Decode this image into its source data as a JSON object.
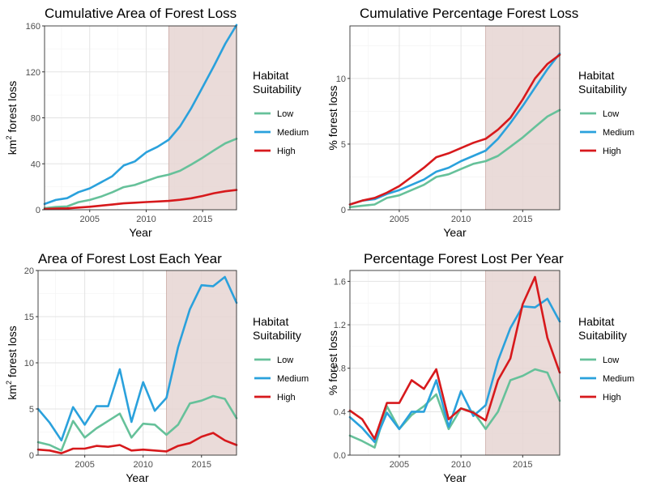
{
  "colors": {
    "low": "#66c19a",
    "medium": "#2aa1dc",
    "high": "#d7191c",
    "shade": "#e6d5d2",
    "grid_major": "#e3e3e3",
    "grid_minor": "#f2f2f2",
    "axis_text": "#4d4d4d"
  },
  "chart_data": [
    {
      "type": "line",
      "title": "Cumulative Area of Forest Loss",
      "xlabel": "Year",
      "ylabel_main": "km",
      "ylabel_sup": "2",
      "ylabel_rest": " forest loss",
      "xlim": [
        2001,
        2018
      ],
      "ylim": [
        0,
        160
      ],
      "xticks": [
        2005,
        2010,
        2015
      ],
      "yticks": [
        0,
        40,
        80,
        120,
        160
      ],
      "ytick_labels": [
        "0",
        "40",
        "80",
        "120",
        "160"
      ],
      "shaded_range": [
        2012,
        2018
      ],
      "legend": {
        "title_line1": "Habitat",
        "title_line2": "Suitability",
        "entries": [
          "Low",
          "Medium",
          "High"
        ],
        "position": "right"
      },
      "x": [
        2001,
        2002,
        2003,
        2004,
        2005,
        2006,
        2007,
        2008,
        2009,
        2010,
        2011,
        2012,
        2013,
        2014,
        2015,
        2016,
        2017,
        2018
      ],
      "series": [
        {
          "name": "Low",
          "color_key": "low",
          "values": [
            1.4,
            2.4,
            2.9,
            6.6,
            8.5,
            11.4,
            15.2,
            19.7,
            21.6,
            25.0,
            28.4,
            30.6,
            33.9,
            39.4,
            45.3,
            51.7,
            57.8,
            61.8
          ]
        },
        {
          "name": "Medium",
          "color_key": "medium",
          "values": [
            5,
            8.5,
            10.1,
            15.3,
            18.6,
            23.8,
            29.2,
            38.5,
            42.1,
            50.0,
            54.8,
            61.0,
            72.6,
            88.5,
            106.8,
            125.1,
            144.5,
            160.8
          ]
        },
        {
          "name": "High",
          "color_key": "high",
          "values": [
            0.6,
            1.0,
            1.2,
            1.9,
            2.6,
            3.6,
            4.5,
            5.6,
            6.1,
            6.7,
            7.2,
            7.7,
            8.7,
            10.0,
            12.0,
            14.4,
            16.1,
            17.2
          ]
        }
      ]
    },
    {
      "type": "line",
      "title": "Cumulative Percentage Forest Loss",
      "xlabel": "Year",
      "ylabel_main": "% forest loss",
      "ylabel_sup": "",
      "ylabel_rest": "",
      "xlim": [
        2001,
        2018
      ],
      "ylim": [
        0,
        14
      ],
      "xticks": [
        2005,
        2010,
        2015
      ],
      "yticks": [
        0,
        5,
        10
      ],
      "ytick_labels": [
        "0",
        "5",
        "10"
      ],
      "shaded_range": [
        2012,
        2018
      ],
      "legend": {
        "title_line1": "Habitat",
        "title_line2": "Suitability",
        "entries": [
          "Low",
          "Medium",
          "High"
        ],
        "position": "right"
      },
      "x": [
        2001,
        2002,
        2003,
        2004,
        2005,
        2006,
        2007,
        2008,
        2009,
        2010,
        2011,
        2012,
        2013,
        2014,
        2015,
        2016,
        2017,
        2018
      ],
      "series": [
        {
          "name": "Low",
          "color_key": "low",
          "values": [
            0.2,
            0.3,
            0.4,
            0.9,
            1.1,
            1.5,
            1.9,
            2.5,
            2.7,
            3.1,
            3.5,
            3.7,
            4.1,
            4.8,
            5.5,
            6.3,
            7.1,
            7.6
          ]
        },
        {
          "name": "Medium",
          "color_key": "medium",
          "values": [
            0.4,
            0.7,
            0.8,
            1.2,
            1.5,
            1.9,
            2.3,
            2.9,
            3.2,
            3.7,
            4.1,
            4.5,
            5.4,
            6.6,
            7.9,
            9.3,
            10.7,
            11.9
          ]
        },
        {
          "name": "High",
          "color_key": "high",
          "values": [
            0.4,
            0.7,
            0.9,
            1.3,
            1.8,
            2.5,
            3.2,
            4.0,
            4.3,
            4.7,
            5.1,
            5.4,
            6.1,
            7.0,
            8.4,
            10.0,
            11.1,
            11.8
          ]
        }
      ]
    },
    {
      "type": "line",
      "title": "Area of Forest Lost Each Year",
      "xlabel": "Year",
      "ylabel_main": "km",
      "ylabel_sup": "2",
      "ylabel_rest": " forest loss",
      "xlim": [
        2001,
        2018
      ],
      "ylim": [
        0,
        20
      ],
      "xticks": [
        2005,
        2010,
        2015
      ],
      "yticks": [
        0,
        5,
        10,
        15,
        20
      ],
      "ytick_labels": [
        "0",
        "5",
        "10",
        "15",
        "20"
      ],
      "shaded_range": [
        2012,
        2018
      ],
      "legend": {
        "title_line1": "Habitat",
        "title_line2": "Suitability",
        "entries": [
          "Low",
          "Medium",
          "High"
        ],
        "position": "right"
      },
      "x": [
        2001,
        2002,
        2003,
        2004,
        2005,
        2006,
        2007,
        2008,
        2009,
        2010,
        2011,
        2012,
        2013,
        2014,
        2015,
        2016,
        2017,
        2018
      ],
      "series": [
        {
          "name": "Low",
          "color_key": "low",
          "values": [
            1.4,
            1.1,
            0.5,
            3.7,
            1.9,
            2.9,
            3.7,
            4.5,
            1.9,
            3.4,
            3.3,
            2.2,
            3.3,
            5.6,
            5.9,
            6.4,
            6.1,
            4.0
          ]
        },
        {
          "name": "Medium",
          "color_key": "medium",
          "values": [
            5.0,
            3.5,
            1.6,
            5.2,
            3.3,
            5.3,
            5.3,
            9.3,
            3.6,
            7.9,
            4.8,
            6.2,
            11.7,
            15.8,
            18.4,
            18.3,
            19.3,
            16.5
          ]
        },
        {
          "name": "High",
          "color_key": "high",
          "values": [
            0.6,
            0.5,
            0.2,
            0.7,
            0.7,
            1.0,
            0.9,
            1.1,
            0.5,
            0.6,
            0.5,
            0.4,
            1.0,
            1.3,
            2.0,
            2.4,
            1.6,
            1.1
          ]
        }
      ]
    },
    {
      "type": "line",
      "title": "Percentage Forest Lost Per Year",
      "xlabel": "Year",
      "ylabel_main": "% forest loss",
      "ylabel_sup": "",
      "ylabel_rest": "",
      "xlim": [
        2001,
        2018
      ],
      "ylim": [
        0,
        1.7
      ],
      "xticks": [
        2005,
        2010,
        2015
      ],
      "yticks": [
        0,
        0.4,
        0.8,
        1.2,
        1.6
      ],
      "ytick_labels": [
        "0.0",
        "0.4",
        "0.8",
        "1.2",
        "1.6"
      ],
      "shaded_range": [
        2012,
        2018
      ],
      "legend": {
        "title_line1": "Habitat",
        "title_line2": "Suitability",
        "entries": [
          "Low",
          "Medium",
          "High"
        ],
        "position": "right"
      },
      "x": [
        2001,
        2002,
        2003,
        2004,
        2005,
        2006,
        2007,
        2008,
        2009,
        2010,
        2011,
        2012,
        2013,
        2014,
        2015,
        2016,
        2017,
        2018
      ],
      "series": [
        {
          "name": "Low",
          "color_key": "low",
          "values": [
            0.18,
            0.13,
            0.07,
            0.45,
            0.24,
            0.37,
            0.45,
            0.56,
            0.24,
            0.43,
            0.4,
            0.24,
            0.4,
            0.69,
            0.73,
            0.79,
            0.76,
            0.5
          ]
        },
        {
          "name": "Medium",
          "color_key": "medium",
          "values": [
            0.35,
            0.25,
            0.12,
            0.39,
            0.24,
            0.4,
            0.4,
            0.69,
            0.26,
            0.59,
            0.36,
            0.46,
            0.87,
            1.17,
            1.37,
            1.36,
            1.44,
            1.23
          ]
        },
        {
          "name": "High",
          "color_key": "high",
          "values": [
            0.41,
            0.33,
            0.15,
            0.48,
            0.48,
            0.69,
            0.61,
            0.79,
            0.33,
            0.43,
            0.39,
            0.32,
            0.69,
            0.89,
            1.39,
            1.64,
            1.08,
            0.76
          ]
        }
      ]
    }
  ]
}
